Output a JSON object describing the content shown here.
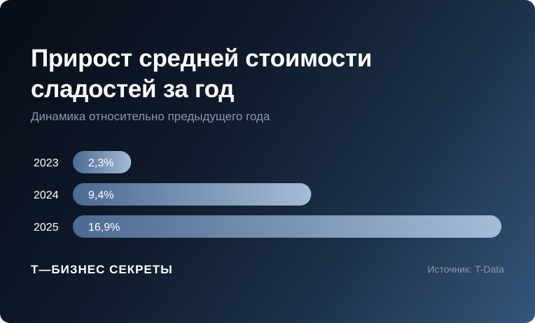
{
  "header": {
    "title": "Прирост средней стоимости сладостей за год",
    "subtitle": "Динамика относительно предыдущего года"
  },
  "chart_data": {
    "type": "bar",
    "orientation": "horizontal",
    "categories": [
      "2023",
      "2024",
      "2025"
    ],
    "values": [
      2.3,
      9.4,
      16.9
    ],
    "value_labels": [
      "2,3%",
      "9,4%",
      "16,9%"
    ],
    "unit": "%",
    "grid": false,
    "legend": "none"
  },
  "footer": {
    "brand": "Т—БИЗНЕС СЕКРЕТЫ",
    "source": "Источник: T-Data"
  },
  "colors": {
    "bar_start": "#4d6a92",
    "bar_end": "#a5bcd7",
    "text": "#ffffff",
    "muted": "#8a97a8"
  }
}
